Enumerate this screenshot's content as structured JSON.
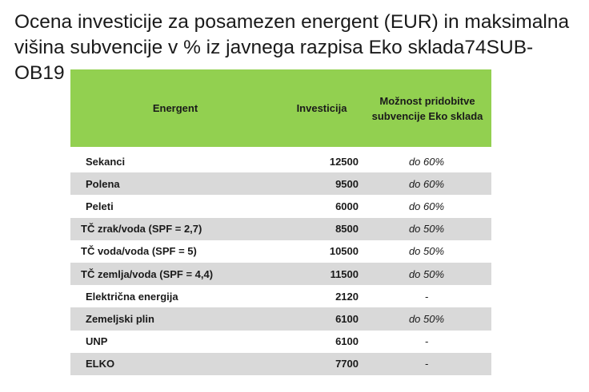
{
  "title_line1": "Ocena investicije za posamezen energent (EUR) in maksimalna",
  "title_line2": "višina subvencije v % iz javnega razpisa Eko sklada74SUB-OB19",
  "table": {
    "headers": {
      "energent": "Energent",
      "investicija": "Investicija",
      "subvencija_line1": "Možnost pridobitve",
      "subvencija_line2": "subvencije Eko sklada"
    },
    "rows": [
      {
        "energent": "Sekanci",
        "investicija": "12500",
        "subvencija": "do 60%"
      },
      {
        "energent": "Polena",
        "investicija": "9500",
        "subvencija": "do 60%"
      },
      {
        "energent": "Peleti",
        "investicija": "6000",
        "subvencija": "do 60%"
      },
      {
        "energent": "TČ zrak/voda (SPF = 2,7)",
        "investicija": "8500",
        "subvencija": "do 50%"
      },
      {
        "energent": "TČ voda/voda (SPF = 5)",
        "investicija": "10500",
        "subvencija": "do 50%"
      },
      {
        "energent": "TČ zemlja/voda (SPF = 4,4)",
        "investicija": "11500",
        "subvencija": "do 50%"
      },
      {
        "energent": "Električna energija",
        "investicija": "2120",
        "subvencija": "-"
      },
      {
        "energent": "Zemeljski plin",
        "investicija": "6100",
        "subvencija": "do 50%"
      },
      {
        "energent": "UNP",
        "investicija": "6100",
        "subvencija": "-"
      },
      {
        "energent": "ELKO",
        "investicija": "7700",
        "subvencija": "-"
      }
    ]
  }
}
